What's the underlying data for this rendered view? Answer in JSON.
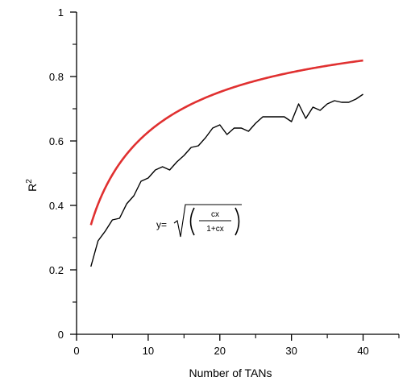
{
  "chart_data": {
    "type": "line",
    "xlabel": "Number of TANs",
    "ylabel": "R",
    "ylabel_superscript": "2",
    "xlim": [
      0,
      45
    ],
    "ylim": [
      0,
      1
    ],
    "x_ticks": [
      0,
      10,
      20,
      30,
      40
    ],
    "x_tick_labels": [
      "0",
      "10",
      "20",
      "30",
      "40"
    ],
    "x_minor_ticks": [
      5,
      15,
      25,
      35,
      45
    ],
    "y_ticks": [
      0,
      0.2,
      0.4,
      0.6,
      0.8,
      1
    ],
    "y_tick_labels": [
      "0",
      "0.2",
      "0.4",
      "0.6",
      "0.8",
      "1"
    ],
    "y_minor_ticks": [
      0.1,
      0.3,
      0.5,
      0.7,
      0.9
    ],
    "grid": false,
    "series": [
      {
        "color": "#000000",
        "x": [
          2,
          3,
          4,
          5,
          6,
          7,
          8,
          9,
          10,
          11,
          12,
          13,
          14,
          15,
          16,
          17,
          18,
          19,
          20,
          21,
          22,
          23,
          24,
          25,
          26,
          27,
          28,
          29,
          30,
          31,
          32,
          33,
          34,
          35,
          36,
          37,
          38,
          39,
          40
        ],
        "y": [
          0.21,
          0.29,
          0.32,
          0.355,
          0.36,
          0.405,
          0.43,
          0.475,
          0.485,
          0.51,
          0.52,
          0.51,
          0.535,
          0.555,
          0.58,
          0.585,
          0.61,
          0.64,
          0.65,
          0.62,
          0.64,
          0.64,
          0.63,
          0.655,
          0.675,
          0.675,
          0.675,
          0.675,
          0.66,
          0.715,
          0.67,
          0.705,
          0.695,
          0.715,
          0.725,
          0.72,
          0.72,
          0.73,
          0.745
        ]
      },
      {
        "color": "#e03030",
        "fit_c": 0.065,
        "x_range": [
          2,
          40
        ]
      }
    ],
    "annotation": {
      "prefix": "y=",
      "numerator": "cx",
      "denominator": "1+cx"
    }
  }
}
